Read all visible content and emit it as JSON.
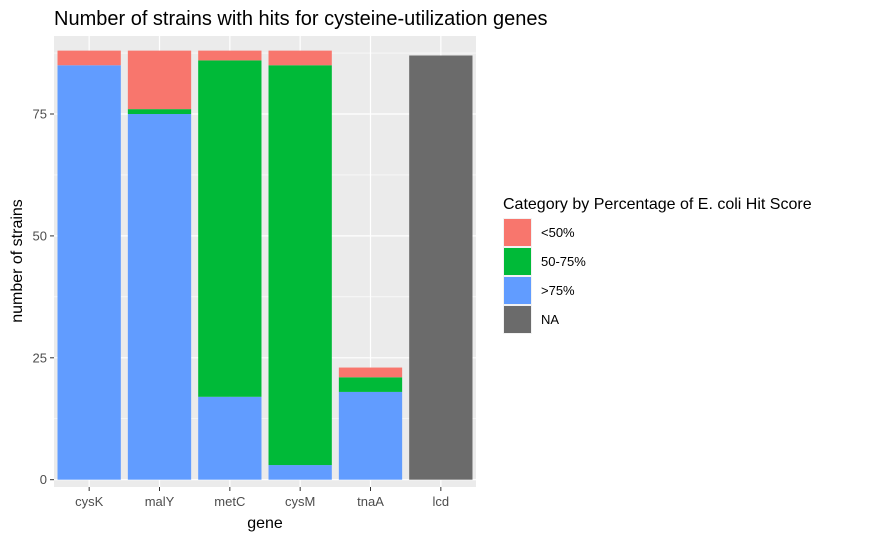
{
  "chart_data": {
    "type": "bar",
    "stacked": true,
    "title": "Number of strains with hits for cysteine-utilization genes",
    "xlabel": "gene",
    "ylabel": "number of strains",
    "categories": [
      "cysK",
      "malY",
      "metC",
      "cysM",
      "tnaA",
      "lcd"
    ],
    "ylim": [
      -1.5,
      91
    ],
    "yticks": [
      0,
      25,
      50,
      75
    ],
    "grid": true,
    "legend_position": "right",
    "legend": {
      "title": "Category by Percentage of E. coli Hit Score",
      "entries": [
        "<50%",
        "50-75%",
        ">75%",
        "NA"
      ]
    },
    "series": [
      {
        "name": ">75%",
        "color": "#619CFF",
        "values": [
          85,
          75,
          17,
          3,
          18,
          0
        ]
      },
      {
        "name": "50-75%",
        "color": "#00BA38",
        "values": [
          0,
          1,
          69,
          82,
          3,
          0
        ]
      },
      {
        "name": "<50%",
        "color": "#F8766D",
        "values": [
          3,
          12,
          2,
          3,
          2,
          0
        ]
      },
      {
        "name": "NA",
        "color": "#6B6B6B",
        "values": [
          0,
          0,
          0,
          0,
          0,
          87
        ]
      }
    ],
    "legend_colors": [
      "#F8766D",
      "#00BA38",
      "#619CFF",
      "#6B6B6B"
    ]
  }
}
